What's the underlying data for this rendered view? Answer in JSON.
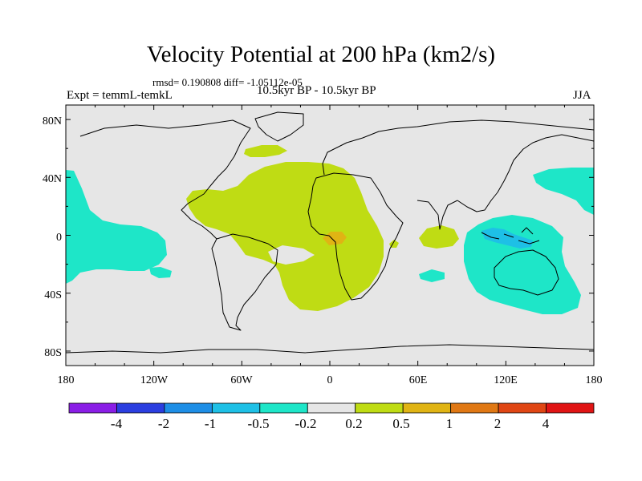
{
  "title": "Velocity Potential at 200 hPa (km2/s)",
  "stats": "rmsd= 0.190808 diff= -1.05112e-05",
  "left_label": "Expt = temmL-temkL",
  "center_label": "10.5kyr BP - 10.5kyr BP",
  "right_label": "JJA",
  "map": {
    "projection": "cylindrical equidistant",
    "lon_ticks": [
      "180",
      "120W",
      "60W",
      "0",
      "60E",
      "120E",
      "180"
    ],
    "lat_ticks": [
      "80N",
      "40N",
      "0",
      "40S",
      "80S"
    ],
    "background_color": "#e6e6e6",
    "coastline_color": "#000000"
  },
  "colorbar": {
    "colors": [
      "#8a1ee6",
      "#2b3ee0",
      "#1e8ee6",
      "#1ec0e6",
      "#1ee6c8",
      "#e6e6e6",
      "#bfdc14",
      "#e0b414",
      "#e07814",
      "#e04614",
      "#e01414"
    ],
    "labels": [
      "-4",
      "-2",
      "-1",
      "-0.5",
      "-0.2",
      "0.2",
      "0.5",
      "1",
      "2",
      "4"
    ]
  },
  "fields": [
    {
      "name": "atlantic-positive-anomaly",
      "level": "0.2 to 0.5",
      "color": "#bfdc14"
    },
    {
      "name": "africa-positive-core",
      "level": "0.5 to 1",
      "color": "#e0b414"
    },
    {
      "name": "north-atlantic-positive",
      "level": "0.2 to 0.5",
      "color": "#bfdc14"
    },
    {
      "name": "indian-ocean-positive",
      "level": "0.2 to 0.5",
      "color": "#bfdc14"
    },
    {
      "name": "maritime-continent-negative",
      "level": "-0.5 to -0.2",
      "color": "#1ee6c8"
    },
    {
      "name": "west-pacific-negative",
      "level": "-0.5 to -0.2",
      "color": "#1ee6c8"
    },
    {
      "name": "east-pacific-negative",
      "level": "-0.5 to -0.2",
      "color": "#1ee6c8"
    },
    {
      "name": "indonesia-core-negative",
      "level": "-1 to -0.5",
      "color": "#1ec0e6"
    }
  ]
}
